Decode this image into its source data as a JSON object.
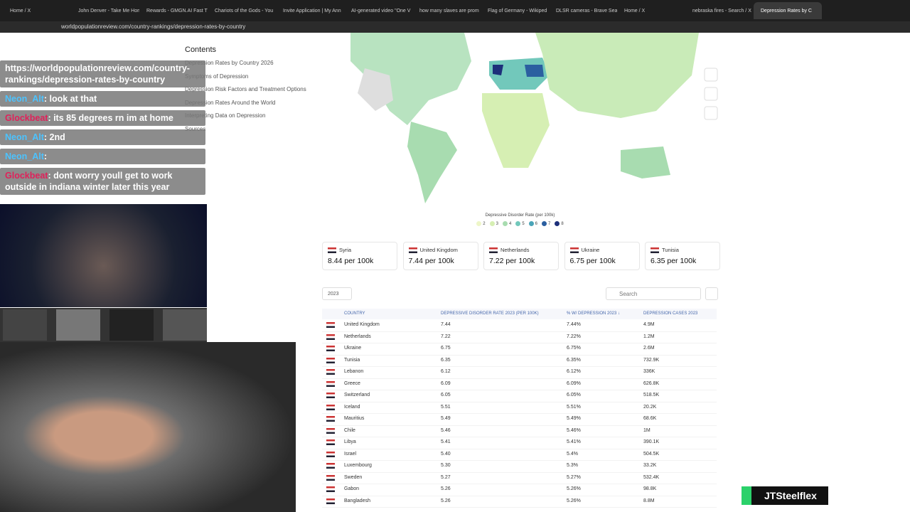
{
  "browser": {
    "tabs": [
      "Home / X",
      "John Denver - Take Me Hom",
      "Rewards - GMGN.AI Fast Tr",
      "Chariots of the Gods - You",
      "Invite Application | My Ann",
      "AI-generated video \"One V",
      "how many slaves are prom",
      "Flag of Germany - Wikiped",
      "DLSR cameras - Brave Sea",
      "Home / X",
      "nebraska fires - Search / X",
      "Depression Rates by C"
    ],
    "url": "worldpopulationreview.com/country-rankings/depression-rates-by-country"
  },
  "contents": {
    "title": "Contents",
    "items": [
      "Depression Rates by Country 2026",
      "Symptoms of Depression",
      "Depression Risk Factors and Treatment Options",
      "Depression Rates Around the World",
      "Interpreting Data on Depression",
      "Sources"
    ]
  },
  "map": {
    "legend_title": "Depressive Disorder Rate (per 100k)",
    "legend": [
      {
        "label": "2",
        "color": "#eef6c8"
      },
      {
        "label": "3",
        "color": "#d6efb3"
      },
      {
        "label": "4",
        "color": "#a8dcb0"
      },
      {
        "label": "5",
        "color": "#72c8bb"
      },
      {
        "label": "6",
        "color": "#4aa4b8"
      },
      {
        "label": "7",
        "color": "#2b5fa0"
      },
      {
        "label": "8",
        "color": "#1d2f7a"
      }
    ]
  },
  "cards": [
    {
      "country": "Syria",
      "value": "8.44 per 100k"
    },
    {
      "country": "United Kingdom",
      "value": "7.44 per 100k"
    },
    {
      "country": "Netherlands",
      "value": "7.22 per 100k"
    },
    {
      "country": "Ukraine",
      "value": "6.75 per 100k"
    },
    {
      "country": "Tunisia",
      "value": "6.35 per 100k"
    }
  ],
  "table": {
    "year": "2023",
    "search_placeholder": "Search",
    "headers": [
      "COUNTRY",
      "DEPRESSIVE DISORDER RATE 2023 (PER 100K)",
      "% W/ DEPRESSION 2023 ↓",
      "DEPRESSION CASES 2023"
    ],
    "rows": [
      [
        "United Kingdom",
        "7.44",
        "7.44%",
        "4.9M"
      ],
      [
        "Netherlands",
        "7.22",
        "7.22%",
        "1.2M"
      ],
      [
        "Ukraine",
        "6.75",
        "6.75%",
        "2.6M"
      ],
      [
        "Tunisia",
        "6.35",
        "6.35%",
        "732.9K"
      ],
      [
        "Lebanon",
        "6.12",
        "6.12%",
        "336K"
      ],
      [
        "Greece",
        "6.09",
        "6.09%",
        "626.8K"
      ],
      [
        "Switzerland",
        "6.05",
        "6.05%",
        "518.5K"
      ],
      [
        "Iceland",
        "5.51",
        "5.51%",
        "20.2K"
      ],
      [
        "Mauritius",
        "5.49",
        "5.49%",
        "68.6K"
      ],
      [
        "Chile",
        "5.46",
        "5.46%",
        "1M"
      ],
      [
        "Libya",
        "5.41",
        "5.41%",
        "390.1K"
      ],
      [
        "Israel",
        "5.40",
        "5.4%",
        "504.5K"
      ],
      [
        "Luxembourg",
        "5.30",
        "5.3%",
        "33.2K"
      ],
      [
        "Sweden",
        "5.27",
        "5.27%",
        "532.4K"
      ],
      [
        "Gabon",
        "5.26",
        "5.26%",
        "98.8K"
      ],
      [
        "Bangladesh",
        "5.26",
        "5.26%",
        "8.8M"
      ]
    ]
  },
  "chat": [
    {
      "user": "",
      "text": "https://worldpopulationreview.com/country-rankings/depression-rates-by-country"
    },
    {
      "user": "Neon_Alt",
      "text": ": look at that"
    },
    {
      "user": "Glockbeat",
      "text": ": its 85 degrees rn im at home"
    },
    {
      "user": "Neon_Alt",
      "text": ": 2nd"
    },
    {
      "user": "Neon_Alt",
      "text": ":"
    },
    {
      "user": "Glockbeat",
      "text": ": dont worry youll get to work outside in indiana winter later this year"
    }
  ],
  "overlay": {
    "watermark": "JTSteelflex"
  }
}
